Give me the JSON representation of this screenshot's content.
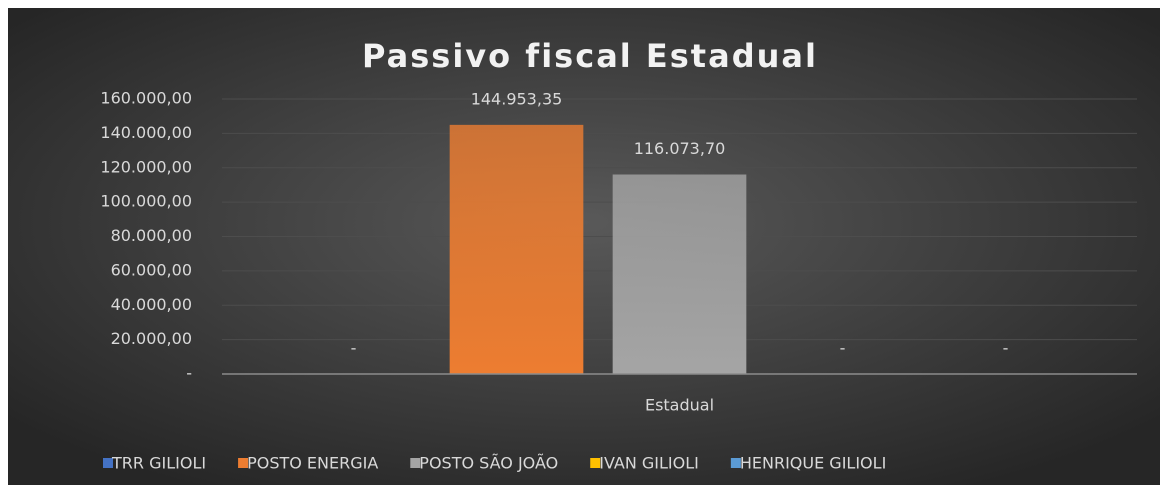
{
  "chart_data": {
    "type": "bar",
    "title": "Passivo fiscal Estadual",
    "categories": [
      "Estadual"
    ],
    "series": [
      {
        "name": "TRR GILIOLI",
        "color": "#4472c4",
        "values": [
          0
        ],
        "value_labels": [
          "-"
        ]
      },
      {
        "name": "POSTO ENERGIA",
        "color": "#ed7d31",
        "values": [
          144953.35
        ],
        "value_labels": [
          "144.953,35"
        ]
      },
      {
        "name": "POSTO SÃO JOÃO",
        "color": "#a5a5a5",
        "values": [
          116073.7
        ],
        "value_labels": [
          "116.073,70"
        ]
      },
      {
        "name": "IVAN GILIOLI",
        "color": "#ffc000",
        "values": [
          0
        ],
        "value_labels": [
          "-"
        ]
      },
      {
        "name": "HENRIQUE GILIOLI",
        "color": "#5b9bd5",
        "values": [
          0
        ],
        "value_labels": [
          "-"
        ]
      }
    ],
    "ylim": [
      0,
      160000
    ],
    "yticks": [
      {
        "value": 0,
        "label": "-"
      },
      {
        "value": 20000,
        "label": "20.000,00"
      },
      {
        "value": 40000,
        "label": "40.000,00"
      },
      {
        "value": 60000,
        "label": "60.000,00"
      },
      {
        "value": 80000,
        "label": "80.000,00"
      },
      {
        "value": 100000,
        "label": "100.000,00"
      },
      {
        "value": 120000,
        "label": "120.000,00"
      },
      {
        "value": 140000,
        "label": "140.000,00"
      },
      {
        "value": 160000,
        "label": "160.000,00"
      }
    ],
    "grid": true,
    "legend": "bottom"
  }
}
